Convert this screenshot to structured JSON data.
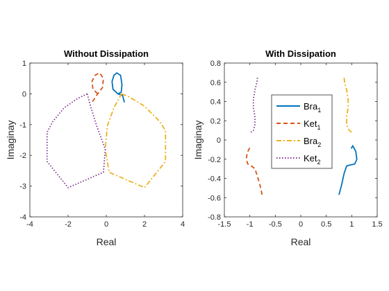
{
  "chart_data": [
    {
      "type": "line",
      "title": "Without Dissipation",
      "xlabel": "Real",
      "ylabel": "Imaginay",
      "xlim": [
        -4,
        4
      ],
      "ylim": [
        -4,
        1
      ],
      "xticks": [
        -4,
        -2,
        0,
        2,
        4
      ],
      "yticks": [
        -4,
        -3,
        -2,
        -1,
        0,
        1
      ],
      "xtick_labels": [
        "-4",
        "-2",
        "0",
        "2",
        "4"
      ],
      "ytick_labels": [
        "-4",
        "-3",
        "-2",
        "-1",
        "0",
        "1"
      ],
      "grid": false,
      "series": [
        {
          "name": "Bra_1",
          "color": "#0072BD",
          "dash": "solid",
          "points": [
            [
              0.95,
              -0.28
            ],
            [
              0.85,
              -0.05
            ],
            [
              0.6,
              0.0
            ],
            [
              0.35,
              0.15
            ],
            [
              0.3,
              0.4
            ],
            [
              0.4,
              0.6
            ],
            [
              0.55,
              0.68
            ],
            [
              0.75,
              0.6
            ],
            [
              0.82,
              0.3
            ],
            [
              0.78,
              0.05
            ],
            [
              0.6,
              0.0
            ]
          ]
        },
        {
          "name": "Ket_1",
          "color": "#D95319",
          "dash": "dashed",
          "points": [
            [
              -0.45,
              0.0
            ],
            [
              -0.7,
              0.15
            ],
            [
              -0.75,
              0.4
            ],
            [
              -0.6,
              0.6
            ],
            [
              -0.35,
              0.68
            ],
            [
              -0.15,
              0.5
            ],
            [
              -0.2,
              0.2
            ],
            [
              -0.45,
              0.0
            ],
            [
              -0.75,
              -0.28
            ]
          ]
        },
        {
          "name": "Bra_2",
          "color": "#EDB120",
          "dash": "dashdot",
          "points": [
            [
              0.8,
              0.0
            ],
            [
              1.2,
              -0.1
            ],
            [
              2.0,
              -0.4
            ],
            [
              2.8,
              -0.9
            ],
            [
              3.1,
              -1.2
            ],
            [
              3.1,
              -2.2
            ],
            [
              2.0,
              -3.05
            ],
            [
              0.15,
              -2.55
            ],
            [
              -0.05,
              -1.8
            ],
            [
              0.05,
              -1.05
            ],
            [
              0.4,
              -0.45
            ],
            [
              0.8,
              0.0
            ]
          ]
        },
        {
          "name": "Ket_2",
          "color": "#7E2F8E",
          "dash": "dotted",
          "points": [
            [
              -1.0,
              0.0
            ],
            [
              -1.5,
              -0.15
            ],
            [
              -2.2,
              -0.45
            ],
            [
              -2.8,
              -0.9
            ],
            [
              -3.1,
              -1.25
            ],
            [
              -3.1,
              -2.2
            ],
            [
              -2.0,
              -3.05
            ],
            [
              -0.15,
              -2.55
            ],
            [
              -0.05,
              -1.8
            ],
            [
              -0.5,
              -1.05
            ],
            [
              -0.8,
              -0.45
            ],
            [
              -1.0,
              0.0
            ]
          ]
        }
      ]
    },
    {
      "type": "line",
      "title": "With Dissipation",
      "xlabel": "Real",
      "ylabel": "Imaginay",
      "xlim": [
        -1.5,
        1.5
      ],
      "ylim": [
        -0.8,
        0.8
      ],
      "xticks": [
        -1.5,
        -1,
        -0.5,
        0,
        0.5,
        1,
        1.5
      ],
      "yticks": [
        -0.8,
        -0.6,
        -0.4,
        -0.2,
        0,
        0.2,
        0.4,
        0.6,
        0.8
      ],
      "xtick_labels": [
        "-1.5",
        "-1",
        "-0.5",
        "0",
        "0.5",
        "1",
        "1.5"
      ],
      "ytick_labels": [
        "-0.8",
        "-0.6",
        "-0.4",
        "-0.2",
        "0",
        "0.2",
        "0.4",
        "0.6",
        "0.8"
      ],
      "grid": false,
      "legend": {
        "placement": "center",
        "entries": [
          {
            "base": "Bra",
            "sub": "1"
          },
          {
            "base": "Ket",
            "sub": "1"
          },
          {
            "base": "Bra",
            "sub": "2"
          },
          {
            "base": "Ket",
            "sub": "2"
          }
        ]
      },
      "series": [
        {
          "name": "Bra_1",
          "color": "#0072BD",
          "dash": "solid",
          "points": [
            [
              0.75,
              -0.57
            ],
            [
              0.8,
              -0.47
            ],
            [
              0.85,
              -0.35
            ],
            [
              0.9,
              -0.27
            ],
            [
              0.97,
              -0.26
            ],
            [
              1.06,
              -0.25
            ],
            [
              1.1,
              -0.2
            ],
            [
              1.08,
              -0.12
            ],
            [
              1.02,
              -0.06
            ],
            [
              0.99,
              -0.09
            ]
          ]
        },
        {
          "name": "Ket_1",
          "color": "#D95319",
          "dash": "dashed",
          "points": [
            [
              -0.76,
              -0.57
            ],
            [
              -0.8,
              -0.47
            ],
            [
              -0.85,
              -0.38
            ],
            [
              -0.9,
              -0.3
            ],
            [
              -0.97,
              -0.27
            ],
            [
              -1.04,
              -0.25
            ],
            [
              -1.07,
              -0.2
            ],
            [
              -1.05,
              -0.13
            ],
            [
              -1.0,
              -0.08
            ],
            [
              -0.96,
              -0.09
            ]
          ]
        },
        {
          "name": "Bra_2",
          "color": "#EDB120",
          "dash": "dashdot",
          "points": [
            [
              1.0,
              0.08
            ],
            [
              0.95,
              0.1
            ],
            [
              0.9,
              0.16
            ],
            [
              0.9,
              0.25
            ],
            [
              0.93,
              0.33
            ],
            [
              0.93,
              0.42
            ],
            [
              0.9,
              0.52
            ],
            [
              0.86,
              0.6
            ],
            [
              0.85,
              0.65
            ]
          ]
        },
        {
          "name": "Ket_2",
          "color": "#7E2F8E",
          "dash": "dotted",
          "points": [
            [
              -0.98,
              0.08
            ],
            [
              -0.93,
              0.1
            ],
            [
              -0.9,
              0.16
            ],
            [
              -0.9,
              0.25
            ],
            [
              -0.93,
              0.33
            ],
            [
              -0.93,
              0.42
            ],
            [
              -0.9,
              0.52
            ],
            [
              -0.86,
              0.6
            ],
            [
              -0.85,
              0.65
            ]
          ]
        }
      ]
    }
  ]
}
